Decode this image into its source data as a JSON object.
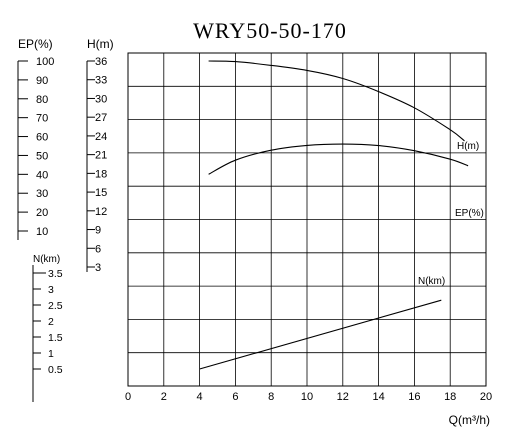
{
  "chart_data": {
    "type": "line",
    "title": "WRY50-50-170",
    "xlabel": "Q(m³/h)",
    "xlim": [
      0,
      20
    ],
    "x_ticks": [
      "0",
      "2",
      "4",
      "6",
      "8",
      "10",
      "12",
      "14",
      "16",
      "18",
      "20"
    ],
    "grid": true,
    "axes": {
      "ep": {
        "label": "EP(%)",
        "ticks": [
          "100",
          "90",
          "80",
          "70",
          "60",
          "50",
          "40",
          "30",
          "20",
          "10"
        ]
      },
      "h": {
        "label": "H(m)",
        "ticks": [
          "36",
          "33",
          "30",
          "27",
          "24",
          "21",
          "18",
          "15",
          "12",
          "9",
          "6",
          "3"
        ]
      },
      "n": {
        "label": "N(km)",
        "ticks": [
          "3.5",
          "3",
          "2.5",
          "2",
          "1.5",
          "1",
          "0.5"
        ]
      }
    },
    "series": [
      {
        "name": "H(m)",
        "axis": "h",
        "x": [
          4.5,
          6,
          8,
          10,
          12,
          14,
          16,
          18,
          18.8
        ],
        "y": [
          36,
          35.9,
          35.3,
          34.5,
          33.2,
          31.1,
          28.5,
          25,
          23.2
        ]
      },
      {
        "name": "EP(%)",
        "axis": "ep",
        "x": [
          4.5,
          6,
          8,
          10,
          12,
          14,
          16,
          18,
          19
        ],
        "y": [
          40,
          47.5,
          52.8,
          55.3,
          56,
          55.2,
          52.5,
          48,
          44.5
        ]
      },
      {
        "name": "N(km)",
        "axis": "n",
        "x": [
          4,
          17.5
        ],
        "y": [
          0.5,
          2.65
        ]
      }
    ]
  }
}
